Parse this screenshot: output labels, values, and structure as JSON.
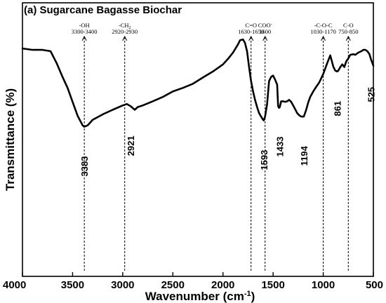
{
  "chart_data": {
    "type": "line",
    "title": "(a) Sugarcane Bagasse Biochar",
    "xlabel": "Wavenumber (cm-1)",
    "xlabel_main": "Wavenumber (cm",
    "xlabel_sup": "-1",
    "xlabel_close": ")",
    "ylabel": "Transmittance (%)",
    "xlim": [
      4000,
      500
    ],
    "x_reversed": true,
    "ylim": [
      0,
      100
    ],
    "y_ticks_labeled": false,
    "grid": false,
    "x_ticks": [
      {
        "value": 4000,
        "label": "4000"
      },
      {
        "value": 3500,
        "label": "3500"
      },
      {
        "value": 3000,
        "label": "3000"
      },
      {
        "value": 2500,
        "label": "2500"
      },
      {
        "value": 2000,
        "label": "2000"
      },
      {
        "value": 1500,
        "label": "1500"
      },
      {
        "value": 1000,
        "label": "1000"
      },
      {
        "value": 500,
        "label": "500"
      }
    ],
    "series": [
      {
        "x": [
          4000,
          3900,
          3800,
          3720,
          3660,
          3600,
          3550,
          3500,
          3450,
          3400,
          3383,
          3350,
          3300,
          3200,
          3100,
          3000,
          2960,
          2921,
          2880,
          2850,
          2800,
          2700,
          2600,
          2500,
          2400,
          2300,
          2200,
          2100,
          2000,
          1950,
          1900,
          1850,
          1830,
          1800,
          1780,
          1760,
          1740,
          1720,
          1700,
          1680,
          1660,
          1640,
          1620,
          1600,
          1593,
          1580,
          1560,
          1540,
          1520,
          1500,
          1480,
          1460,
          1450,
          1440,
          1433,
          1420,
          1400,
          1380,
          1360,
          1340,
          1320,
          1300,
          1280,
          1260,
          1240,
          1220,
          1194,
          1170,
          1150,
          1130,
          1100,
          1070,
          1040,
          1000,
          960,
          930,
          900,
          880,
          861,
          850,
          830,
          810,
          790,
          770,
          750,
          730,
          700,
          680,
          650,
          620,
          600,
          580,
          560,
          540,
          525,
          500
        ],
        "y": [
          83.3,
          82.8,
          82.8,
          82.3,
          78.0,
          72.9,
          68.9,
          63.8,
          58.7,
          55.2,
          54.7,
          55.2,
          57.2,
          59.2,
          60.9,
          62.5,
          63.0,
          62.2,
          60.9,
          61.9,
          62.5,
          64.0,
          65.6,
          67.6,
          68.9,
          70.4,
          72.7,
          74.9,
          77.5,
          79.5,
          81.8,
          84.8,
          86.3,
          86.6,
          85.3,
          82.3,
          76.5,
          71.4,
          67.6,
          64.5,
          61.9,
          59.7,
          58.4,
          57.2,
          57.0,
          58.4,
          63.0,
          71.4,
          72.9,
          73.4,
          71.9,
          70.1,
          62.2,
          61.6,
          61.9,
          64.0,
          64.0,
          63.8,
          64.0,
          64.5,
          63.8,
          62.5,
          61.1,
          59.7,
          58.9,
          58.4,
          58.4,
          60.9,
          63.5,
          65.6,
          67.6,
          69.3,
          70.9,
          74.0,
          78.0,
          80.8,
          76.7,
          75.2,
          74.9,
          75.2,
          76.5,
          77.5,
          76.5,
          78.6,
          79.7,
          81.0,
          81.2,
          81.0,
          81.8,
          82.3,
          82.8,
          82.8,
          82.3,
          81.3,
          79.5,
          77.0
        ]
      }
    ],
    "peak_labels": [
      {
        "value": 3383,
        "label": "3383"
      },
      {
        "value": 2921,
        "label": "2921"
      },
      {
        "value": 1593,
        "label": "1593"
      },
      {
        "value": 1433,
        "label": "1433"
      },
      {
        "value": 1194,
        "label": "1194"
      },
      {
        "value": 861,
        "label": "861"
      },
      {
        "value": 525,
        "label": "525"
      }
    ],
    "band_annotations": [
      {
        "value": 3383,
        "lines": [
          "-OH",
          "3300-3400"
        ]
      },
      {
        "value": 2980,
        "lines": [
          "-CH",
          "2920-2930"
        ],
        "subscript": "2"
      },
      {
        "value": 1720,
        "lines": [
          "C=O",
          "1630-1650"
        ]
      },
      {
        "value": 1580,
        "lines": [
          "COO",
          "1600"
        ],
        "superscript": "-"
      },
      {
        "value": 1000,
        "lines": [
          "-C-O-C",
          "1030-1170"
        ]
      },
      {
        "value": 750,
        "lines": [
          "C-O",
          "750-850"
        ]
      }
    ]
  }
}
